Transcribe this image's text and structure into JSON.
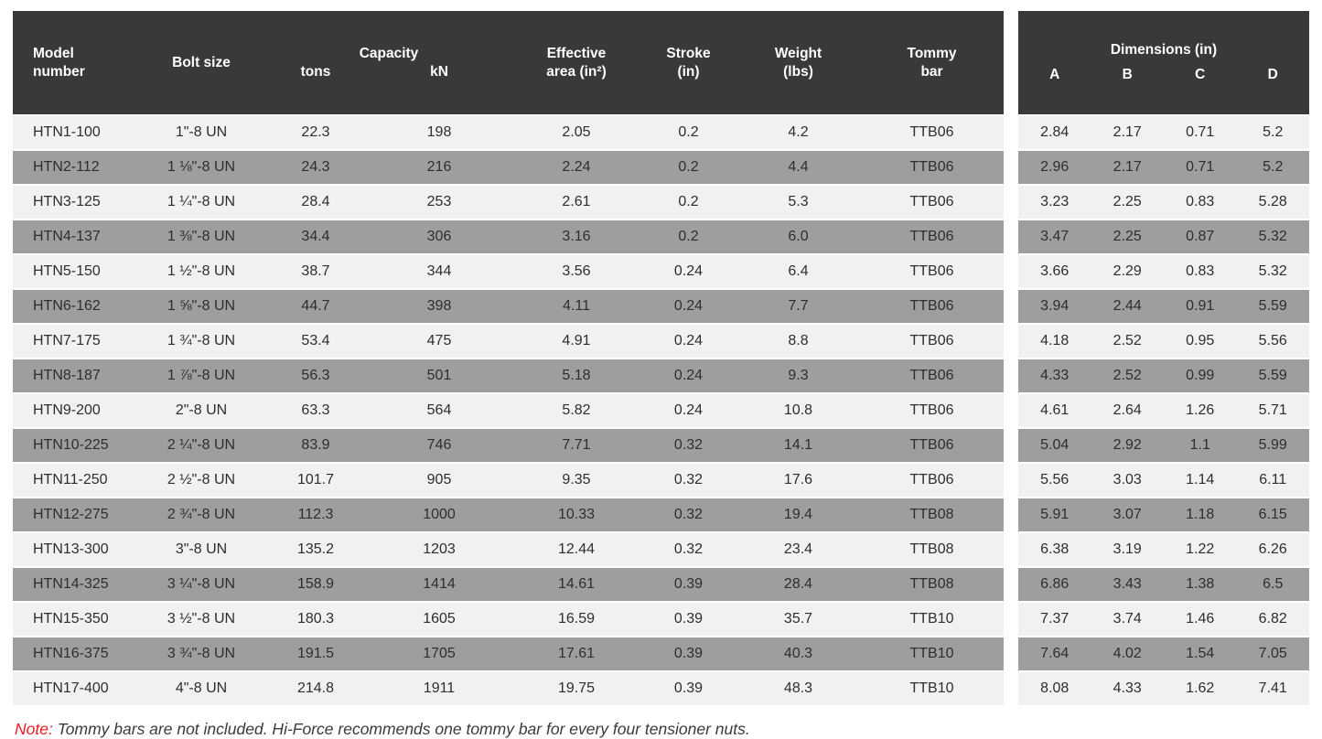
{
  "main_table": {
    "headers": {
      "model": "Model\nnumber",
      "bolt_size": "Bolt size",
      "capacity": "Capacity",
      "capacity_tons": "tons",
      "capacity_kn": "kN",
      "effective_area": "Effective\narea (in²)",
      "stroke": "Stroke\n(in)",
      "weight": "Weight\n(lbs)",
      "tommy_bar": "Tommy\nbar"
    },
    "rows": [
      [
        "HTN1-100",
        "1\"-8 UN",
        "22.3",
        "198",
        "2.05",
        "0.2",
        "4.2",
        "TTB06"
      ],
      [
        "HTN2-112",
        "1 ⅛\"-8 UN",
        "24.3",
        "216",
        "2.24",
        "0.2",
        "4.4",
        "TTB06"
      ],
      [
        "HTN3-125",
        "1 ¼\"-8 UN",
        "28.4",
        "253",
        "2.61",
        "0.2",
        "5.3",
        "TTB06"
      ],
      [
        "HTN4-137",
        "1 ⅜\"-8 UN",
        "34.4",
        "306",
        "3.16",
        "0.2",
        "6.0",
        "TTB06"
      ],
      [
        "HTN5-150",
        "1 ½\"-8 UN",
        "38.7",
        "344",
        "3.56",
        "0.24",
        "6.4",
        "TTB06"
      ],
      [
        "HTN6-162",
        "1 ⅝\"-8 UN",
        "44.7",
        "398",
        "4.11",
        "0.24",
        "7.7",
        "TTB06"
      ],
      [
        "HTN7-175",
        "1 ¾\"-8 UN",
        "53.4",
        "475",
        "4.91",
        "0.24",
        "8.8",
        "TTB06"
      ],
      [
        "HTN8-187",
        "1 ⅞\"-8 UN",
        "56.3",
        "501",
        "5.18",
        "0.24",
        "9.3",
        "TTB06"
      ],
      [
        "HTN9-200",
        "2\"-8 UN",
        "63.3",
        "564",
        "5.82",
        "0.24",
        "10.8",
        "TTB06"
      ],
      [
        "HTN10-225",
        "2 ¼\"-8 UN",
        "83.9",
        "746",
        "7.71",
        "0.32",
        "14.1",
        "TTB06"
      ],
      [
        "HTN11-250",
        "2 ½\"-8 UN",
        "101.7",
        "905",
        "9.35",
        "0.32",
        "17.6",
        "TTB06"
      ],
      [
        "HTN12-275",
        "2 ¾\"-8 UN",
        "112.3",
        "1000",
        "10.33",
        "0.32",
        "19.4",
        "TTB08"
      ],
      [
        "HTN13-300",
        "3\"-8 UN",
        "135.2",
        "1203",
        "12.44",
        "0.32",
        "23.4",
        "TTB08"
      ],
      [
        "HTN14-325",
        "3 ¼\"-8 UN",
        "158.9",
        "1414",
        "14.61",
        "0.39",
        "28.4",
        "TTB08"
      ],
      [
        "HTN15-350",
        "3 ½\"-8 UN",
        "180.3",
        "1605",
        "16.59",
        "0.39",
        "35.7",
        "TTB10"
      ],
      [
        "HTN16-375",
        "3 ¾\"-8 UN",
        "191.5",
        "1705",
        "17.61",
        "0.39",
        "40.3",
        "TTB10"
      ],
      [
        "HTN17-400",
        "4\"-8 UN",
        "214.8",
        "1911",
        "19.75",
        "0.39",
        "48.3",
        "TTB10"
      ]
    ]
  },
  "dimensions_table": {
    "title": "Dimensions (in)",
    "columns": [
      "A",
      "B",
      "C",
      "D"
    ],
    "rows": [
      [
        "2.84",
        "2.17",
        "0.71",
        "5.2"
      ],
      [
        "2.96",
        "2.17",
        "0.71",
        "5.2"
      ],
      [
        "3.23",
        "2.25",
        "0.83",
        "5.28"
      ],
      [
        "3.47",
        "2.25",
        "0.87",
        "5.32"
      ],
      [
        "3.66",
        "2.29",
        "0.83",
        "5.32"
      ],
      [
        "3.94",
        "2.44",
        "0.91",
        "5.59"
      ],
      [
        "4.18",
        "2.52",
        "0.95",
        "5.56"
      ],
      [
        "4.33",
        "2.52",
        "0.99",
        "5.59"
      ],
      [
        "4.61",
        "2.64",
        "1.26",
        "5.71"
      ],
      [
        "5.04",
        "2.92",
        "1.1",
        "5.99"
      ],
      [
        "5.56",
        "3.03",
        "1.14",
        "6.11"
      ],
      [
        "5.91",
        "3.07",
        "1.18",
        "6.15"
      ],
      [
        "6.38",
        "3.19",
        "1.22",
        "6.26"
      ],
      [
        "6.86",
        "3.43",
        "1.38",
        "6.5"
      ],
      [
        "7.37",
        "3.74",
        "1.46",
        "6.82"
      ],
      [
        "7.64",
        "4.02",
        "1.54",
        "7.05"
      ],
      [
        "8.08",
        "4.33",
        "1.62",
        "7.41"
      ]
    ]
  },
  "note": {
    "label": "Note:",
    "text": " Tommy bars are not included. Hi-Force recommends one tommy bar for every four tensioner nuts."
  },
  "colors": {
    "header_bg": "#39393b",
    "row_light": "#f1f1f2",
    "row_dark": "#9e9e9f",
    "note_red": "#ed1c24"
  }
}
